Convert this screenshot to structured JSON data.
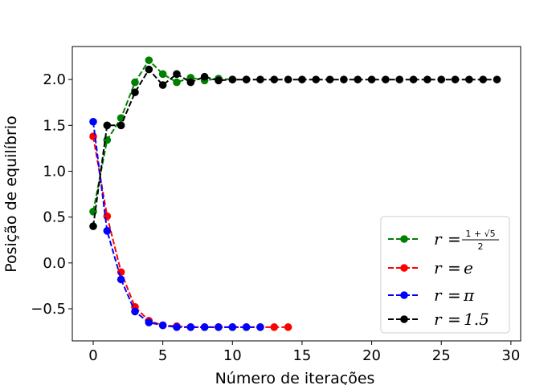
{
  "chart_data": {
    "type": "line",
    "xlabel": "Número de iterações",
    "ylabel": "Posição de equilíbrio",
    "xlim": [
      -1.5,
      30.7
    ],
    "ylim": [
      -0.85,
      2.36
    ],
    "xticks": [
      0,
      5,
      10,
      15,
      20,
      25,
      30
    ],
    "yticks": [
      -0.5,
      0.0,
      0.5,
      1.0,
      1.5,
      2.0
    ],
    "xtick_labels": [
      "0",
      "5",
      "10",
      "15",
      "20",
      "25",
      "30"
    ],
    "ytick_labels": [
      "−0.5",
      "0.0",
      "0.5",
      "1.0",
      "1.5",
      "2.0"
    ],
    "grid": false,
    "legend_position": "lower-right",
    "line_style": "dashed",
    "marker": "circle",
    "series": [
      {
        "name": "r = (1+√5)/2",
        "color": "#008000",
        "x": [
          0,
          1,
          2,
          3,
          4,
          5,
          6,
          7,
          8,
          9,
          10,
          11
        ],
        "y": [
          0.56,
          1.34,
          1.58,
          1.97,
          2.21,
          2.06,
          1.97,
          2.02,
          1.99,
          2.01,
          2.0,
          2.0
        ]
      },
      {
        "name": "r = e",
        "color": "#ff0000",
        "x": [
          0,
          1,
          2,
          3,
          4,
          5,
          6,
          7,
          8,
          9,
          10,
          11,
          12,
          13,
          14
        ],
        "y": [
          1.38,
          0.51,
          -0.1,
          -0.48,
          -0.63,
          -0.68,
          -0.69,
          -0.7,
          -0.7,
          -0.7,
          -0.7,
          -0.7,
          -0.7,
          -0.7,
          -0.7
        ]
      },
      {
        "name": "r = π",
        "color": "#0000ff",
        "x": [
          0,
          1,
          2,
          3,
          4,
          5,
          6,
          7,
          8,
          9,
          10,
          11,
          12
        ],
        "y": [
          1.54,
          0.35,
          -0.18,
          -0.53,
          -0.65,
          -0.68,
          -0.7,
          -0.7,
          -0.7,
          -0.7,
          -0.7,
          -0.7,
          -0.7
        ]
      },
      {
        "name": "r = 1.5",
        "color": "#000000",
        "x": [
          0,
          1,
          2,
          3,
          4,
          5,
          6,
          7,
          8,
          9,
          10,
          11,
          12,
          13,
          14,
          15,
          16,
          17,
          18,
          19,
          20,
          21,
          22,
          23,
          24,
          25,
          26,
          27,
          28,
          29
        ],
        "y": [
          0.4,
          1.5,
          1.5,
          1.86,
          2.11,
          1.94,
          2.06,
          1.97,
          2.03,
          1.99,
          2.0,
          2.0,
          2.0,
          2.0,
          2.0,
          2.0,
          2.0,
          2.0,
          2.0,
          2.0,
          2.0,
          2.0,
          2.0,
          2.0,
          2.0,
          2.0,
          2.0,
          2.0,
          2.0,
          2.0
        ]
      }
    ],
    "legend": [
      {
        "prefix": "r",
        "equals": "=",
        "frac_num": "1 + √5",
        "frac_den": "2",
        "color": "#008000"
      },
      {
        "prefix": "r",
        "equals": "=",
        "value": "e",
        "color": "#ff0000"
      },
      {
        "prefix": "r",
        "equals": "=",
        "value": "π",
        "color": "#0000ff"
      },
      {
        "prefix": "r",
        "equals": "=",
        "value": "1.5",
        "color": "#000000"
      }
    ]
  }
}
